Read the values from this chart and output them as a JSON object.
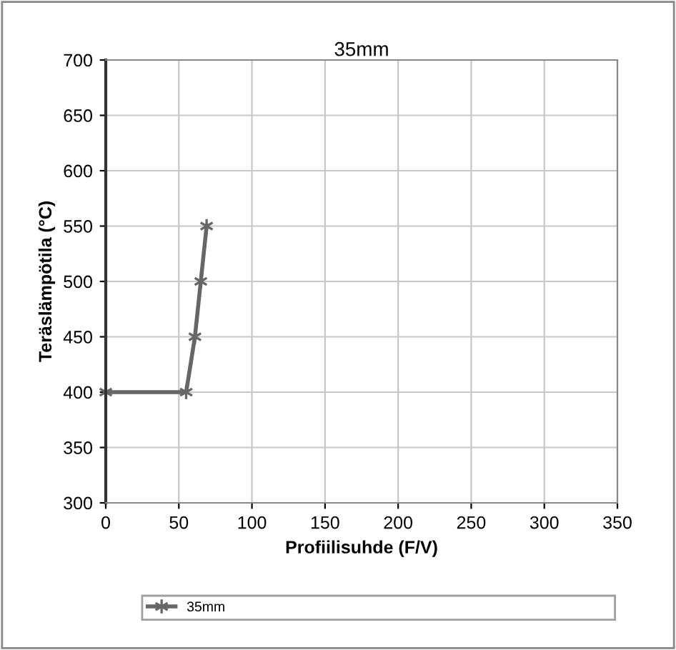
{
  "chart_data": {
    "type": "line",
    "title": "35mm",
    "xlabel": "Profiilisuhde (F/V)",
    "ylabel": "Teräslämpötila (°C)",
    "x": [
      0,
      55,
      61,
      65,
      69
    ],
    "series": [
      {
        "name": "35mm",
        "color": "#666666",
        "values": [
          400,
          400,
          450,
          500,
          550
        ]
      }
    ],
    "xlim": [
      0,
      350
    ],
    "xticks": [
      0,
      50,
      100,
      150,
      200,
      250,
      300,
      350
    ],
    "ylim": [
      300,
      700
    ],
    "yticks": [
      300,
      350,
      400,
      450,
      500,
      550,
      600,
      650,
      700
    ],
    "grid": true,
    "legend": "bottom",
    "marker": "cross",
    "line_style": "solid"
  }
}
